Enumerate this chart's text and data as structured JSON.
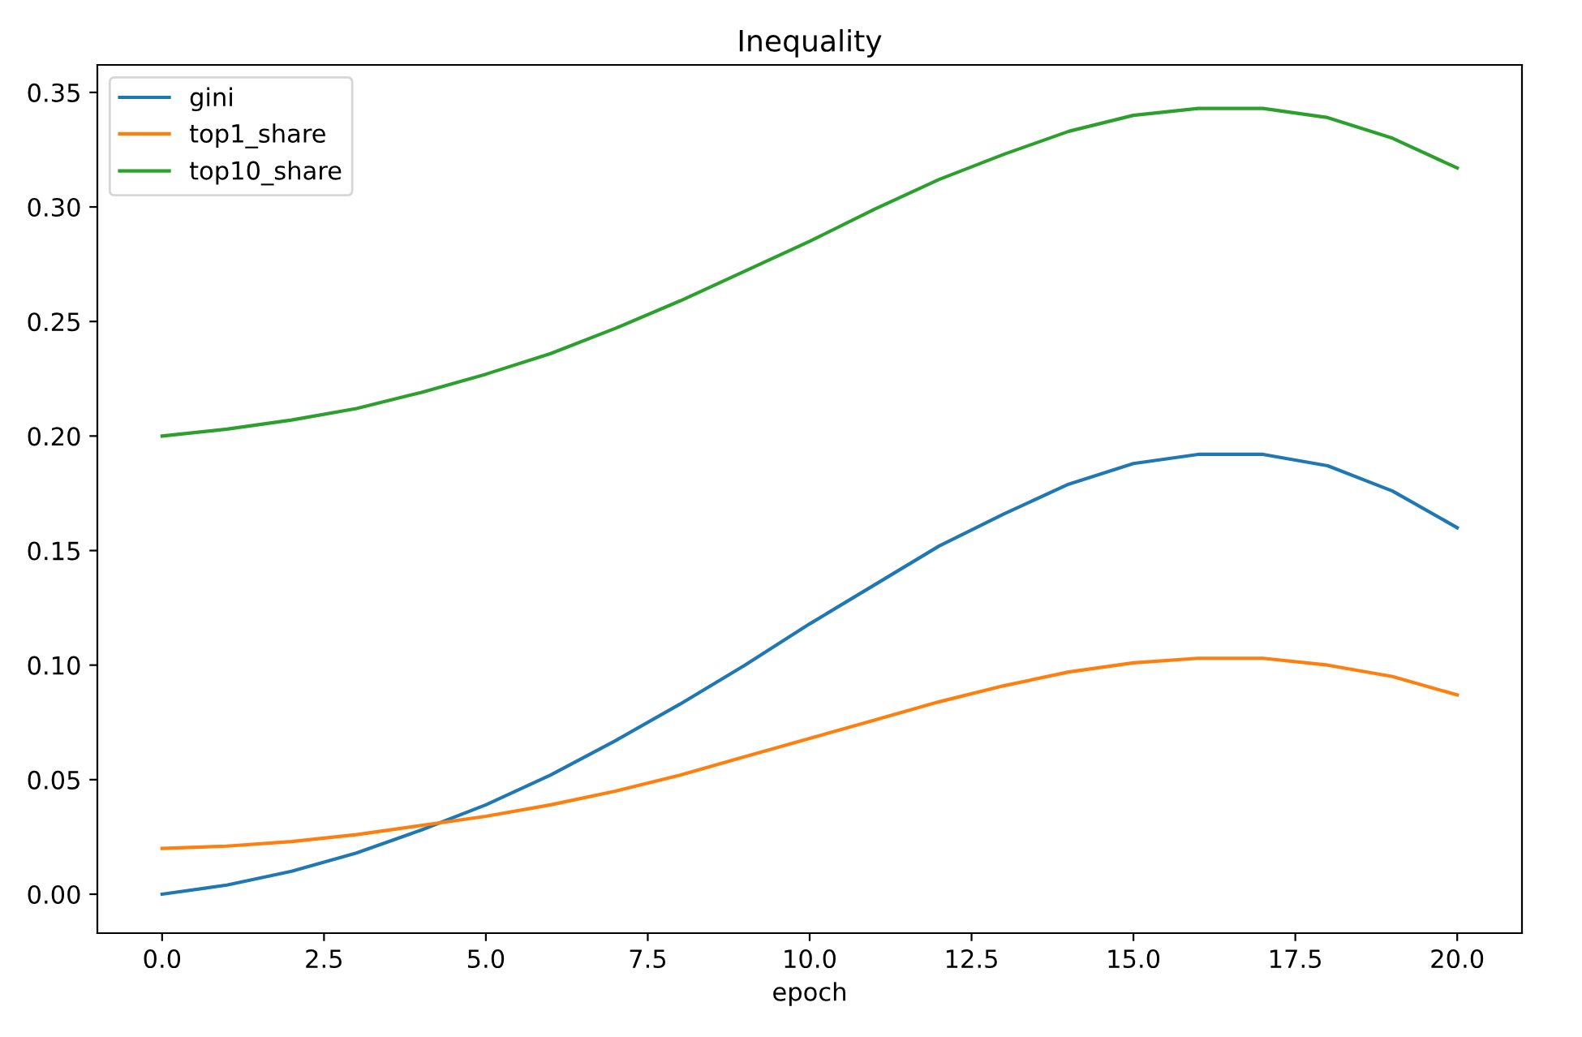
{
  "chart_data": {
    "type": "line",
    "title": "Inequality",
    "xlabel": "epoch",
    "x": [
      0,
      1,
      2,
      3,
      4,
      5,
      6,
      7,
      8,
      9,
      10,
      11,
      12,
      13,
      14,
      15,
      16,
      17,
      18,
      19,
      20
    ],
    "series": [
      {
        "name": "gini",
        "color": "#1f77b4",
        "values": [
          0.0,
          0.004,
          0.01,
          0.018,
          0.028,
          0.039,
          0.052,
          0.067,
          0.083,
          0.1,
          0.118,
          0.135,
          0.152,
          0.166,
          0.179,
          0.188,
          0.192,
          0.192,
          0.187,
          0.176,
          0.16
        ]
      },
      {
        "name": "top1_share",
        "color": "#ff7f0e",
        "values": [
          0.02,
          0.021,
          0.023,
          0.026,
          0.03,
          0.034,
          0.039,
          0.045,
          0.052,
          0.06,
          0.068,
          0.076,
          0.084,
          0.091,
          0.097,
          0.101,
          0.103,
          0.103,
          0.1,
          0.095,
          0.087
        ]
      },
      {
        "name": "top10_share",
        "color": "#2ca02c",
        "values": [
          0.2,
          0.203,
          0.207,
          0.212,
          0.219,
          0.227,
          0.236,
          0.247,
          0.259,
          0.272,
          0.285,
          0.299,
          0.312,
          0.323,
          0.333,
          0.34,
          0.343,
          0.343,
          0.339,
          0.33,
          0.317
        ]
      }
    ],
    "xlim": [
      -1,
      21
    ],
    "ylim": [
      -0.017,
      0.362
    ],
    "xticks": [
      {
        "value": 0,
        "label": "0.0"
      },
      {
        "value": 2.5,
        "label": "2.5"
      },
      {
        "value": 5,
        "label": "5.0"
      },
      {
        "value": 7.5,
        "label": "7.5"
      },
      {
        "value": 10,
        "label": "10.0"
      },
      {
        "value": 12.5,
        "label": "12.5"
      },
      {
        "value": 15,
        "label": "15.0"
      },
      {
        "value": 17.5,
        "label": "17.5"
      },
      {
        "value": 20,
        "label": "20.0"
      }
    ],
    "yticks": [
      {
        "value": 0,
        "label": "0.00"
      },
      {
        "value": 0.05,
        "label": "0.05"
      },
      {
        "value": 0.1,
        "label": "0.10"
      },
      {
        "value": 0.15,
        "label": "0.15"
      },
      {
        "value": 0.2,
        "label": "0.20"
      },
      {
        "value": 0.25,
        "label": "0.25"
      },
      {
        "value": 0.3,
        "label": "0.30"
      },
      {
        "value": 0.35,
        "label": "0.35"
      }
    ],
    "grid": false,
    "legend": "top left",
    "line_style": "solid",
    "marker": "none"
  }
}
